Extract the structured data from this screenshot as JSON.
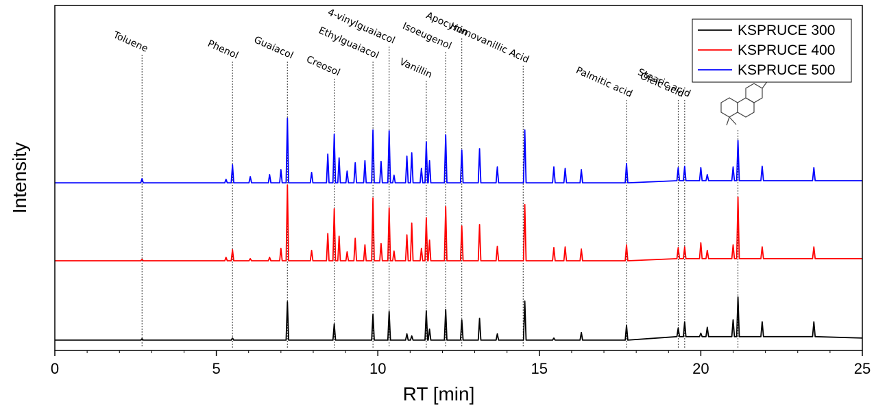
{
  "chart_data": {
    "type": "line",
    "x_label": "RT [min]",
    "y_label": "Intensity",
    "xlim": [
      0,
      25
    ],
    "ylim": [
      0,
      100
    ],
    "xticks": [
      0,
      5,
      10,
      15,
      20,
      25
    ],
    "legend": "top-right",
    "x": [
      0,
      2.66,
      2.7,
      2.74,
      5.26,
      5.3,
      5.34,
      5.46,
      5.5,
      5.54,
      6.01,
      6.05,
      6.09,
      6.61,
      6.65,
      6.69,
      6.96,
      7.0,
      7.04,
      7.16,
      7.2,
      7.24,
      7.91,
      7.95,
      7.99,
      8.41,
      8.45,
      8.49,
      8.61,
      8.65,
      8.69,
      8.76,
      8.8,
      8.84,
      9.01,
      9.05,
      9.09,
      9.26,
      9.3,
      9.34,
      9.56,
      9.6,
      9.64,
      9.81,
      9.85,
      9.89,
      10.06,
      10.1,
      10.14,
      10.31,
      10.35,
      10.39,
      10.46,
      10.5,
      10.54,
      10.86,
      10.9,
      10.94,
      11.01,
      11.05,
      11.09,
      11.31,
      11.35,
      11.39,
      11.46,
      11.5,
      11.54,
      11.56,
      11.6,
      11.64,
      12.06,
      12.1,
      12.14,
      12.56,
      12.6,
      12.64,
      13.11,
      13.15,
      13.19,
      13.66,
      13.7,
      13.74,
      14.51,
      14.55,
      14.59,
      15.41,
      15.45,
      15.49,
      15.76,
      15.8,
      15.84,
      16.26,
      16.3,
      16.34,
      17.66,
      17.7,
      17.74,
      19.26,
      19.3,
      19.34,
      19.46,
      19.5,
      19.54,
      19.96,
      20.0,
      20.04,
      20.16,
      20.2,
      20.24,
      20.96,
      21.0,
      21.04,
      21.11,
      21.15,
      21.19,
      21.86,
      21.9,
      21.94,
      23.46,
      23.5,
      23.54,
      25
    ],
    "series": [
      {
        "name": "KSPRUCE 300",
        "color": "#000000",
        "values": [
          3.0,
          3,
          3.4,
          3,
          3,
          3.0,
          3,
          3,
          3.6,
          3,
          3,
          3.0,
          3,
          3,
          3.0,
          3,
          3,
          3.0,
          3,
          3,
          14.1,
          3,
          3,
          3.0,
          3,
          3,
          3.0,
          3,
          3,
          7.7,
          3,
          3,
          3.0,
          3,
          3,
          3.0,
          3,
          3,
          3.0,
          3,
          3,
          3.0,
          3,
          3,
          10.5,
          3,
          3,
          3.0,
          3,
          3,
          11.3,
          3,
          3,
          3.0,
          3,
          3,
          4.8,
          3,
          3,
          4.2,
          3,
          3,
          3.0,
          3,
          3,
          11.5,
          3,
          3,
          6.2,
          3,
          3,
          11.9,
          3,
          3,
          8.9,
          3,
          3,
          9.3,
          3,
          3,
          4.8,
          3,
          3,
          14.3,
          3,
          3,
          3.6,
          3,
          3,
          3.0,
          3,
          3,
          5.2,
          3,
          3,
          7.3,
          3,
          4,
          6.5,
          4,
          4,
          8.3,
          4,
          4,
          5.0,
          4,
          4,
          6.7,
          4,
          4,
          8.9,
          4,
          4,
          15.5,
          4,
          4,
          8.3,
          4,
          4,
          8.3,
          4,
          3.6
        ]
      },
      {
        "name": "KSPRUCE 400",
        "color": "#ff0000",
        "values": [
          26.0,
          26,
          26.4,
          26,
          26,
          27.0,
          26,
          26,
          29.2,
          26,
          26,
          26.6,
          26,
          26,
          27.0,
          26,
          26,
          29.6,
          26,
          26,
          48.0,
          26,
          26,
          29.0,
          26,
          26,
          33.9,
          26,
          26,
          41.1,
          26,
          26,
          33.1,
          26,
          26,
          28.6,
          26,
          26,
          32.5,
          26,
          26,
          30.6,
          26,
          26,
          44.2,
          26,
          26,
          31.0,
          26,
          26,
          41.3,
          26,
          26,
          28.8,
          26,
          26,
          33.5,
          26,
          26,
          36.9,
          26,
          26,
          29.6,
          26,
          26,
          38.5,
          26,
          26,
          32.0,
          26,
          26,
          41.7,
          26,
          26,
          36.1,
          26,
          26,
          36.5,
          26,
          26,
          30.2,
          26,
          26,
          42.3,
          26,
          26,
          29.8,
          26,
          26,
          30.0,
          26,
          26,
          29.4,
          26,
          26,
          30.6,
          26,
          26.6,
          29.8,
          26.6,
          26.6,
          30.0,
          26.6,
          26.6,
          31.2,
          26.6,
          26.6,
          29.0,
          26.6,
          26.6,
          30.6,
          26.6,
          26.6,
          44.4,
          26.6,
          26.6,
          30.0,
          26.6,
          26.6,
          30.0,
          26.6,
          26.6
        ]
      },
      {
        "name": "KSPRUCE 500",
        "color": "#0000ff",
        "values": [
          48.6,
          48.6,
          49.8,
          48.6,
          48.6,
          49.6,
          48.6,
          48.6,
          53.8,
          48.6,
          48.6,
          50.4,
          48.6,
          48.6,
          51.0,
          48.6,
          48.6,
          52.4,
          48.6,
          48.6,
          67.3,
          48.6,
          48.6,
          51.6,
          48.6,
          48.6,
          56.9,
          48.6,
          48.6,
          62.7,
          48.6,
          48.6,
          55.8,
          48.6,
          48.6,
          52.0,
          48.6,
          48.6,
          54.4,
          48.6,
          48.6,
          55.0,
          48.6,
          48.6,
          63.9,
          48.6,
          48.6,
          54.8,
          48.6,
          48.6,
          63.7,
          48.6,
          48.6,
          50.8,
          48.6,
          48.6,
          56.3,
          48.6,
          48.6,
          57.3,
          48.6,
          48.6,
          52.8,
          48.6,
          48.6,
          60.5,
          48.6,
          48.6,
          55.0,
          48.6,
          48.6,
          62.5,
          48.6,
          48.6,
          58.1,
          48.6,
          48.6,
          58.5,
          48.6,
          48.6,
          53.2,
          48.6,
          48.6,
          63.9,
          48.6,
          48.6,
          53.2,
          48.6,
          48.6,
          52.8,
          48.6,
          48.6,
          52.4,
          48.6,
          48.6,
          54.2,
          48.6,
          49.2,
          53.0,
          49.2,
          49.2,
          53.4,
          49.2,
          49.2,
          53.0,
          49.2,
          49.2,
          51.0,
          49.2,
          49.2,
          53.2,
          49.2,
          49.2,
          60.9,
          49.2,
          49.2,
          53.4,
          49.2,
          49.2,
          53.0,
          49.2,
          49.2
        ]
      }
    ],
    "annotations": [
      {
        "text": "Toluene",
        "x": 2.7
      },
      {
        "text": "Phenol",
        "x": 5.5
      },
      {
        "text": "Guaiacol",
        "x": 7.2
      },
      {
        "text": "Creosol",
        "x": 8.65
      },
      {
        "text": "Ethylguaiacol",
        "x": 9.85
      },
      {
        "text": "4-vinylguaiacol",
        "x": 10.35
      },
      {
        "text": "Vanillin",
        "x": 11.5
      },
      {
        "text": "Isoeugenol",
        "x": 12.1
      },
      {
        "text": "Apocynin",
        "x": 12.6
      },
      {
        "text": "Homovanillic Acid",
        "x": 14.5
      },
      {
        "text": "Palmitic acid",
        "x": 17.7
      },
      {
        "text": "Oleic acid",
        "x": 19.3
      },
      {
        "text": "Stearic acid",
        "x": 19.5
      }
    ],
    "structure_marker_x": 21.15
  }
}
